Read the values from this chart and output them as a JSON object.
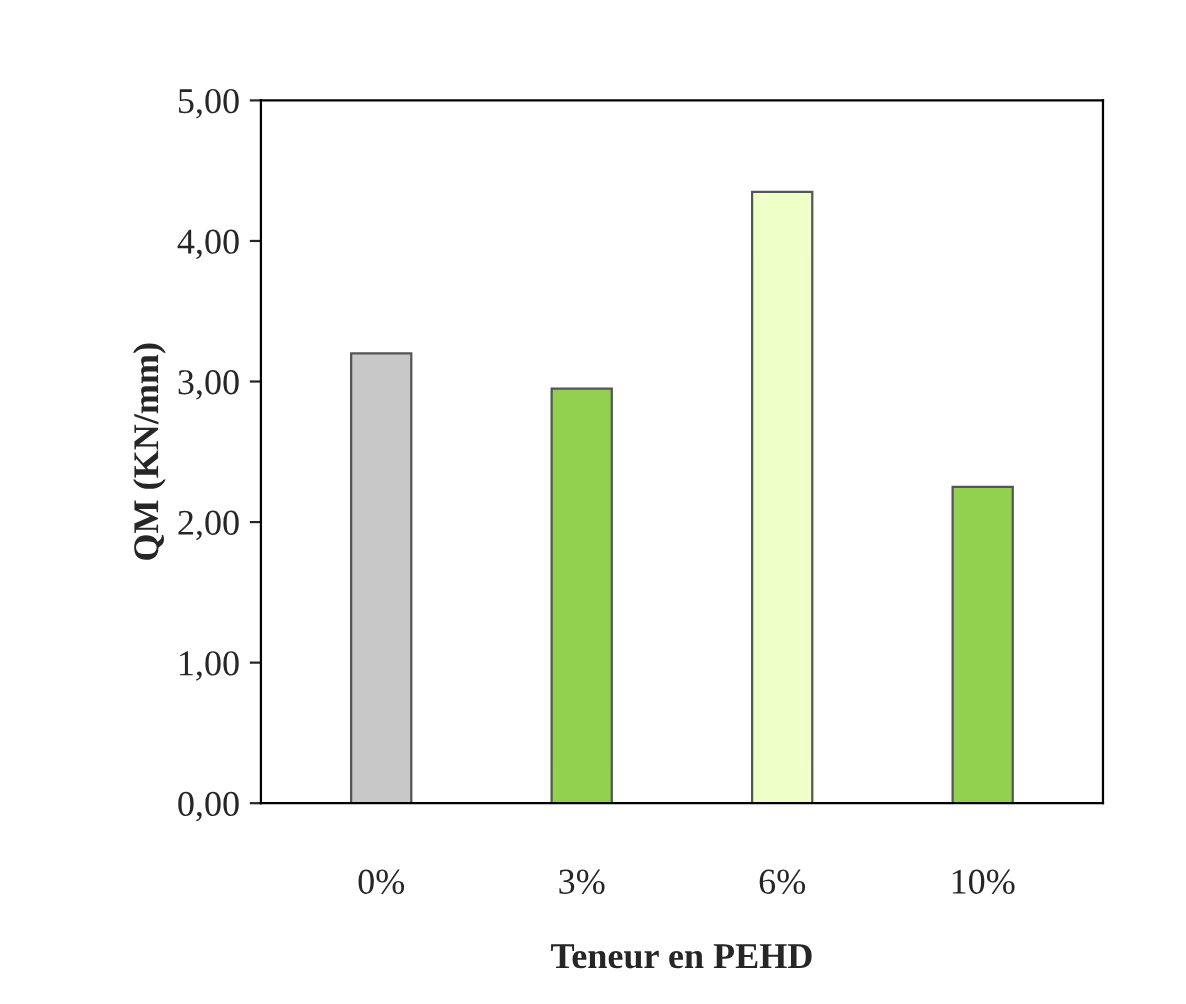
{
  "chart_data": {
    "type": "bar",
    "xlabel": "Teneur en PEHD",
    "ylabel": "QM (KN/mm)",
    "categories": [
      "0%",
      "3%",
      "6%",
      "10%"
    ],
    "values": [
      3.2,
      2.95,
      4.35,
      2.25
    ],
    "colors": [
      "#c8c8c8",
      "#92d050",
      "#eeffc8",
      "#92d050"
    ],
    "ylim": [
      0,
      5
    ],
    "yticks": [
      {
        "value": 0,
        "label": "0,00"
      },
      {
        "value": 1,
        "label": "1,00"
      },
      {
        "value": 2,
        "label": "2,00"
      },
      {
        "value": 3,
        "label": "3,00"
      },
      {
        "value": 4,
        "label": "4,00"
      },
      {
        "value": 5,
        "label": "5,00"
      }
    ],
    "grid": false,
    "legend": false
  }
}
